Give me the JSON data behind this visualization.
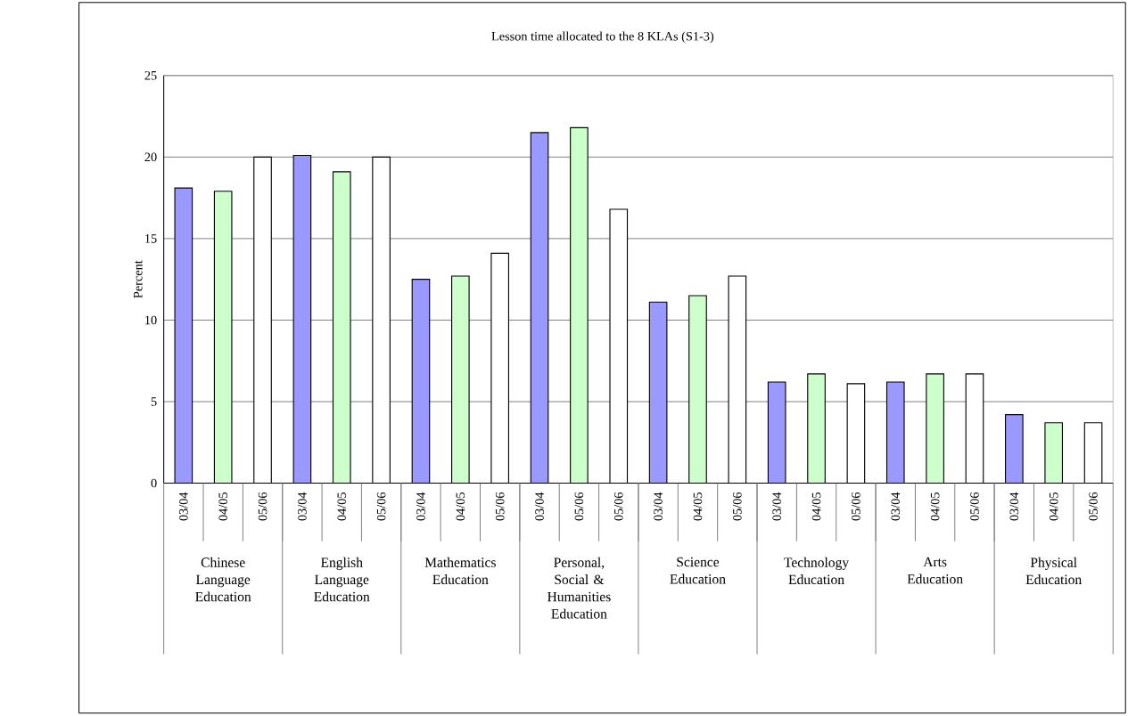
{
  "chart_data": {
    "type": "bar",
    "title": "Lesson time allocated to the 8 KLAs (S1-3)",
    "ylabel": "Percent",
    "categories": [
      "03/04",
      "04/05",
      "05/06",
      "03/04",
      "04/05",
      "05/06",
      "03/04",
      "04/05",
      "05/06",
      "03/04",
      "05/06",
      "05/06",
      "03/04",
      "04/05",
      "05/06",
      "03/04",
      "04/05",
      "05/06",
      "03/04",
      "04/05",
      "05/06",
      "03/04",
      "04/05",
      "05/06"
    ],
    "values": [
      18.1,
      17.9,
      20,
      20.1,
      19.1,
      20,
      12.5,
      12.7,
      14.1,
      21.5,
      21.8,
      16.8,
      11.1,
      11.5,
      12.7,
      6.2,
      6.7,
      6.1,
      6.2,
      6.7,
      6.7,
      4.2,
      3.7,
      3.7
    ],
    "colors": [
      "#9999ff",
      "#ccffcc",
      "#ffffff",
      "#9999ff",
      "#ccffcc",
      "#ffffff",
      "#9999ff",
      "#ccffcc",
      "#ffffff",
      "#9999ff",
      "#ccffcc",
      "#ffffff",
      "#9999ff",
      "#ccffcc",
      "#ffffff",
      "#9999ff",
      "#ccffcc",
      "#ffffff",
      "#9999ff",
      "#ccffcc",
      "#ffffff",
      "#9999ff",
      "#ccffcc",
      "#ffffff"
    ],
    "ylim": [
      0,
      25
    ],
    "yticks": [
      0,
      5,
      10,
      15,
      20,
      25
    ],
    "grid": "y",
    "annotations": [
      "Chinese Language Education",
      "English Language Education",
      "Mathematics Education",
      "Personal, Social & Humanities Education",
      "Science Education",
      "Technology Education",
      "Arts Education",
      "Physical Education"
    ]
  }
}
